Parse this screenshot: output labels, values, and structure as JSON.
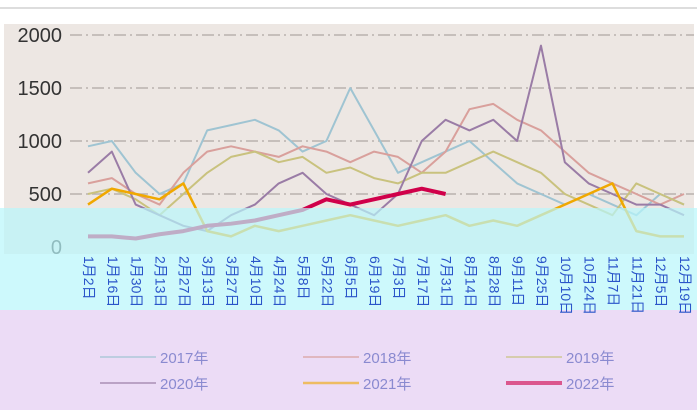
{
  "chart_data": {
    "type": "line",
    "categories": [
      "1月2日",
      "1月16日",
      "1月30日",
      "2月13日",
      "2月27日",
      "3月13日",
      "3月27日",
      "4月10日",
      "4月24日",
      "5月8日",
      "5月22日",
      "6月5日",
      "6月19日",
      "7月3日",
      "7月17日",
      "7月31日",
      "8月14日",
      "8月28日",
      "9月11日",
      "9月25日",
      "10月10日",
      "10月24日",
      "11月7日",
      "11月21日",
      "12月5日",
      "12月19日"
    ],
    "series": [
      {
        "name": "2017年",
        "color": "#9fc4d2",
        "width": 2,
        "values": [
          950,
          1000,
          700,
          500,
          600,
          1100,
          1150,
          1200,
          1100,
          900,
          1000,
          1500,
          1100,
          700,
          800,
          900,
          1000,
          800,
          600,
          500,
          400,
          500,
          400,
          300,
          500,
          400
        ]
      },
      {
        "name": "2018年",
        "color": "#d9a09c",
        "width": 2,
        "values": [
          600,
          650,
          500,
          400,
          700,
          900,
          950,
          900,
          850,
          950,
          900,
          800,
          900,
          850,
          700,
          900,
          1300,
          1350,
          1200,
          1100,
          900,
          700,
          600,
          500,
          400,
          500
        ]
      },
      {
        "name": "2019年",
        "color": "#c9c27e",
        "width": 2,
        "values": [
          500,
          550,
          450,
          300,
          500,
          700,
          850,
          900,
          800,
          850,
          700,
          750,
          650,
          600,
          700,
          700,
          800,
          900,
          800,
          700,
          500,
          400,
          300,
          600,
          500,
          400
        ]
      },
      {
        "name": "2020年",
        "color": "#9a7ca6",
        "width": 2,
        "values": [
          700,
          900,
          400,
          300,
          200,
          150,
          300,
          400,
          600,
          700,
          500,
          400,
          300,
          500,
          1000,
          1200,
          1100,
          1200,
          1000,
          1900,
          800,
          600,
          500,
          400,
          400,
          300
        ]
      },
      {
        "name": "2021年",
        "color": "#f0a800",
        "width": 2.5,
        "values": [
          400,
          550,
          500,
          450,
          600,
          150,
          100,
          200,
          150,
          200,
          250,
          300,
          250,
          200,
          250,
          300,
          200,
          250,
          200,
          300,
          400,
          500,
          600,
          150,
          100,
          100
        ]
      },
      {
        "name": "2022年",
        "color": "#d0004a",
        "width": 4,
        "values": [
          100,
          100,
          80,
          120,
          150,
          200,
          220,
          250,
          300,
          350,
          450,
          400,
          450,
          500,
          550,
          500,
          null,
          null,
          null,
          null,
          null,
          null,
          null,
          null,
          null,
          null
        ]
      }
    ],
    "ylim": [
      0,
      2000
    ],
    "yticks": [
      0,
      500,
      1000,
      1500,
      2000
    ],
    "grid": true
  }
}
